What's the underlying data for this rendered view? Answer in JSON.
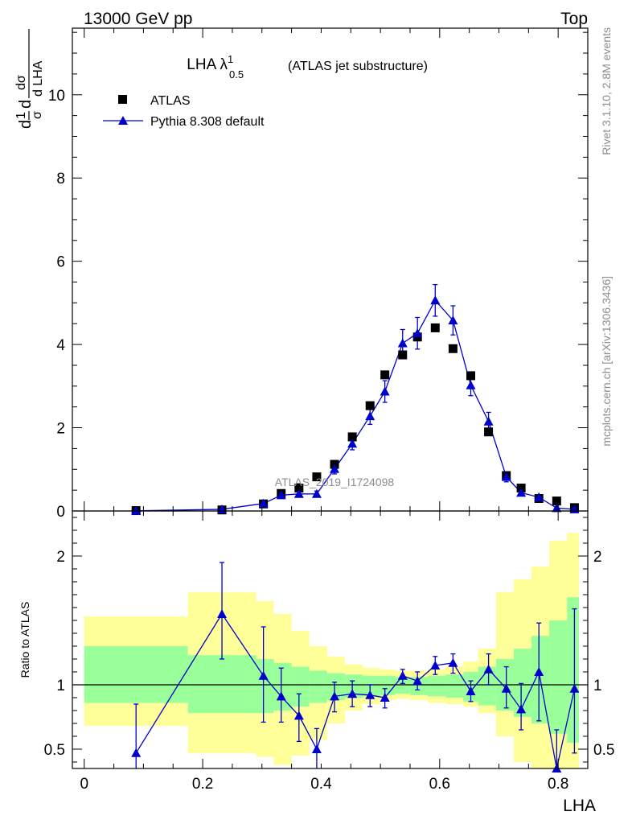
{
  "header": {
    "left": "13000 GeV pp",
    "right": "Top"
  },
  "side_texts": {
    "rivet": "Rivet 3.1.10,  2.8M events",
    "mcplots": "mcplots.cern.ch [arXiv:1306.3436]"
  },
  "watermark": "ATLAS_2019_I1724098",
  "colors": {
    "mc": "#0000cc",
    "data": "#000000",
    "band_outer": "#ffff99",
    "band_inner": "#99ff99"
  },
  "chart_data": [
    {
      "type": "scatter",
      "title_main": "LHA λ",
      "title_sup": "1",
      "title_sub": "0.5",
      "title_tail": "(ATLAS jet substructure)",
      "ylabel": {
        "p1": "d",
        "p2": "1",
        "p3": "σ",
        "p4": "d",
        "p5": "dσ",
        "p6": "d LHA"
      },
      "xlim": [
        -0.02,
        0.85
      ],
      "ylim": [
        0,
        11.6
      ],
      "yticks": [
        0,
        2,
        4,
        6,
        8,
        10
      ],
      "ytick_labels": [
        "0",
        "2",
        "4",
        "6",
        "8",
        "10"
      ],
      "legend": [
        "ATLAS",
        "Pythia 8.308 default"
      ],
      "legend_position": "top-left",
      "x": [
        0.0875,
        0.2325,
        0.3025,
        0.3325,
        0.3625,
        0.3925,
        0.4225,
        0.4525,
        0.4825,
        0.5075,
        0.5375,
        0.5625,
        0.5925,
        0.6225,
        0.6525,
        0.6825,
        0.7125,
        0.7375,
        0.7675,
        0.7975,
        0.8275
      ],
      "series": [
        {
          "name": "ATLAS",
          "values": [
            0.009,
            0.025,
            0.17,
            0.42,
            0.55,
            0.82,
            1.12,
            1.78,
            2.53,
            3.27,
            3.75,
            4.18,
            4.4,
            3.9,
            3.25,
            1.9,
            0.85,
            0.55,
            0.3,
            0.24,
            0.08
          ]
        },
        {
          "name": "Pythia 8.308 default",
          "values": [
            0.004,
            0.04,
            0.18,
            0.38,
            0.41,
            0.41,
            1.01,
            1.62,
            2.28,
            2.87,
            4.03,
            4.27,
            5.06,
            4.58,
            3.02,
            2.15,
            0.82,
            0.44,
            0.33,
            0.07,
            0.04
          ],
          "errors": [
            0.004,
            0.02,
            0.05,
            0.07,
            0.07,
            0.07,
            0.12,
            0.15,
            0.2,
            0.26,
            0.33,
            0.38,
            0.38,
            0.35,
            0.25,
            0.22,
            0.12,
            0.08,
            0.06,
            0.03,
            0.03
          ]
        }
      ]
    },
    {
      "type": "line",
      "ylabel": "Ratio to ATLAS",
      "xlabel": "LHA",
      "xlim": [
        -0.02,
        0.85
      ],
      "ylim": [
        0.35,
        2.35
      ],
      "xticks": [
        0,
        0.2,
        0.4,
        0.6,
        0.8
      ],
      "xtick_labels": [
        "0",
        "0.2",
        "0.4",
        "0.6",
        "0.8"
      ],
      "yticks": [
        0.5,
        1,
        2
      ],
      "ytick_labels": [
        "0.5",
        "1",
        "2"
      ],
      "reference": 1,
      "bin_edges": [
        0,
        0.175,
        0.29,
        0.32,
        0.35,
        0.38,
        0.41,
        0.44,
        0.47,
        0.5,
        0.525,
        0.55,
        0.58,
        0.61,
        0.64,
        0.665,
        0.695,
        0.725,
        0.755,
        0.785,
        0.815,
        0.835
      ],
      "band_inner": {
        "low": [
          0.86,
          0.78,
          0.78,
          0.8,
          0.83,
          0.86,
          0.88,
          0.9,
          0.91,
          0.92,
          0.93,
          0.92,
          0.91,
          0.9,
          0.87,
          0.84,
          0.8,
          0.75,
          0.7,
          0.62,
          0.55
        ],
        "high": [
          1.3,
          1.23,
          1.2,
          1.17,
          1.14,
          1.11,
          1.09,
          1.08,
          1.07,
          1.07,
          1.06,
          1.06,
          1.07,
          1.08,
          1.1,
          1.14,
          1.2,
          1.28,
          1.38,
          1.5,
          1.68
        ]
      },
      "band_outer": {
        "low": [
          0.68,
          0.47,
          0.44,
          0.38,
          0.45,
          0.57,
          0.7,
          0.8,
          0.85,
          0.88,
          0.89,
          0.88,
          0.86,
          0.85,
          0.83,
          0.78,
          0.6,
          0.4,
          0.34,
          0.3,
          0.28
        ],
        "high": [
          1.53,
          1.72,
          1.65,
          1.55,
          1.42,
          1.3,
          1.22,
          1.16,
          1.13,
          1.12,
          1.11,
          1.11,
          1.12,
          1.14,
          1.18,
          1.28,
          1.72,
          1.82,
          1.92,
          2.12,
          2.18
        ]
      },
      "series": [
        {
          "name": "Pythia 8.308 default",
          "x": [
            0.0875,
            0.2325,
            0.3025,
            0.3325,
            0.3625,
            0.3925,
            0.4225,
            0.4525,
            0.4825,
            0.5075,
            0.5375,
            0.5625,
            0.5925,
            0.6225,
            0.6525,
            0.6825,
            0.7125,
            0.7375,
            0.7675,
            0.7975,
            0.8275
          ],
          "values": [
            0.47,
            1.55,
            1.07,
            0.91,
            0.76,
            0.5,
            0.91,
            0.93,
            0.92,
            0.9,
            1.07,
            1.03,
            1.15,
            1.17,
            0.95,
            1.12,
            0.97,
            0.81,
            1.1,
            0.35,
            0.97
          ],
          "err_low": [
            0.47,
            0.35,
            0.36,
            0.2,
            0.2,
            0.15,
            0.12,
            0.1,
            0.09,
            0.08,
            0.06,
            0.07,
            0.07,
            0.08,
            0.08,
            0.12,
            0.15,
            0.16,
            0.38,
            0.35,
            0.5
          ],
          "err_high": [
            0.38,
            0.4,
            0.38,
            0.22,
            0.17,
            0.16,
            0.11,
            0.1,
            0.08,
            0.07,
            0.05,
            0.07,
            0.07,
            0.07,
            0.08,
            0.12,
            0.17,
            0.2,
            0.38,
            0.3,
            0.62
          ]
        }
      ]
    }
  ]
}
